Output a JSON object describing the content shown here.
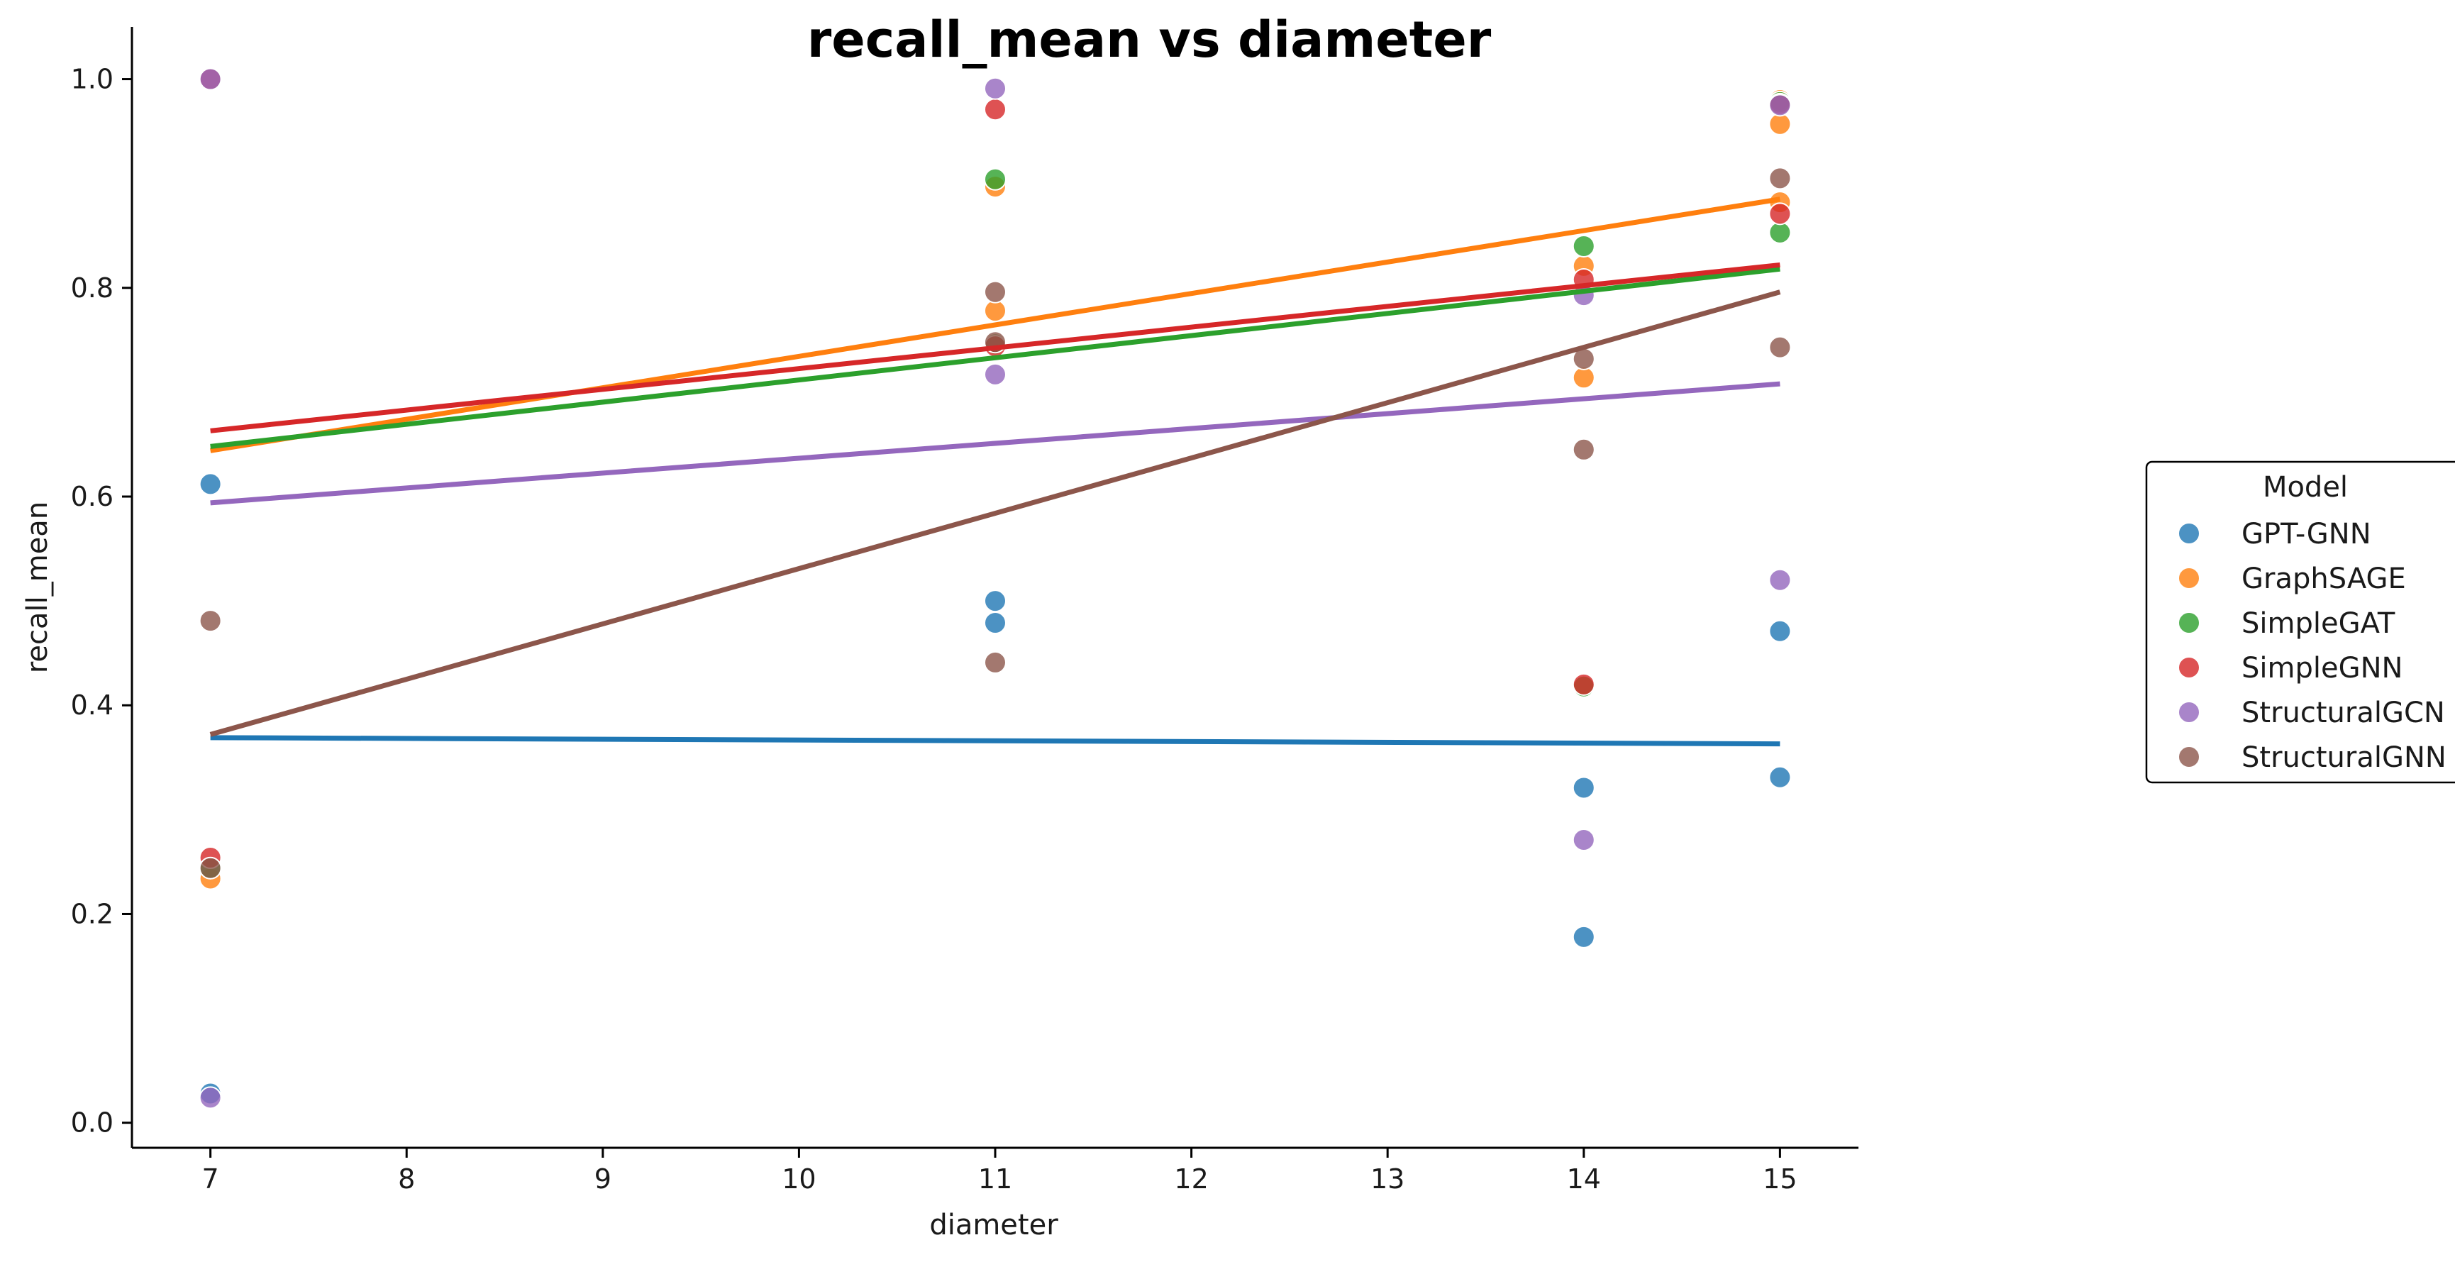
{
  "chart_data": {
    "type": "scatter",
    "title": "recall_mean vs diameter",
    "xlabel": "diameter",
    "ylabel": "recall_mean",
    "xlim": [
      6.6,
      15.4
    ],
    "ylim": [
      -0.024,
      1.05
    ],
    "xticks": [
      7,
      8,
      9,
      10,
      11,
      12,
      13,
      14,
      15
    ],
    "yticks": [
      0.0,
      0.2,
      0.4,
      0.6,
      0.8,
      1.0
    ],
    "grid": false,
    "legend": {
      "title": "Model",
      "placement": "right"
    },
    "series": [
      {
        "name": "GPT-GNN",
        "color": "#1f77b4",
        "points": [
          [
            7,
            0.612
          ],
          [
            7,
            0.028
          ],
          [
            11,
            0.5
          ],
          [
            11,
            0.479
          ],
          [
            14,
            0.321
          ],
          [
            14,
            0.178
          ],
          [
            15,
            0.471
          ],
          [
            15,
            0.331
          ]
        ],
        "trend": [
          [
            7,
            0.369
          ],
          [
            15,
            0.363
          ]
        ]
      },
      {
        "name": "GraphSAGE",
        "color": "#ff7f0e",
        "points": [
          [
            7,
            0.234
          ],
          [
            11,
            0.897
          ],
          [
            11,
            0.778
          ],
          [
            14,
            0.821
          ],
          [
            14,
            0.714
          ],
          [
            15,
            0.98
          ],
          [
            15,
            0.957
          ],
          [
            15,
            0.882
          ]
        ],
        "trend": [
          [
            7,
            0.644
          ],
          [
            15,
            0.885
          ]
        ]
      },
      {
        "name": "SimpleGAT",
        "color": "#2ca02c",
        "points": [
          [
            7,
            0.244
          ],
          [
            11,
            0.904
          ],
          [
            11,
            0.746
          ],
          [
            14,
            0.84
          ],
          [
            14,
            0.418
          ],
          [
            15,
            0.853
          ],
          [
            15,
            0.978
          ]
        ],
        "trend": [
          [
            7,
            0.648
          ],
          [
            15,
            0.818
          ]
        ]
      },
      {
        "name": "SimpleGNN",
        "color": "#d62728",
        "points": [
          [
            7,
            1.0
          ],
          [
            7,
            0.254
          ],
          [
            11,
            0.971
          ],
          [
            11,
            0.744
          ],
          [
            14,
            0.808
          ],
          [
            14,
            0.42
          ],
          [
            15,
            0.871
          ],
          [
            15,
            0.976
          ]
        ],
        "trend": [
          [
            7,
            0.663
          ],
          [
            15,
            0.822
          ]
        ]
      },
      {
        "name": "StructuralGCN",
        "color": "#9467bd",
        "points": [
          [
            7,
            1.0
          ],
          [
            7,
            0.024
          ],
          [
            11,
            0.991
          ],
          [
            11,
            0.717
          ],
          [
            14,
            0.793
          ],
          [
            14,
            0.271
          ],
          [
            15,
            0.52
          ],
          [
            15,
            0.975
          ]
        ],
        "trend": [
          [
            7,
            0.594
          ],
          [
            15,
            0.708
          ]
        ]
      },
      {
        "name": "StructuralGNN",
        "color": "#8c564b",
        "points": [
          [
            7,
            0.481
          ],
          [
            7,
            0.244
          ],
          [
            11,
            0.796
          ],
          [
            11,
            0.748
          ],
          [
            11,
            0.441
          ],
          [
            14,
            0.732
          ],
          [
            14,
            0.645
          ],
          [
            15,
            0.905
          ],
          [
            15,
            0.743
          ]
        ],
        "trend": [
          [
            7,
            0.372
          ],
          [
            15,
            0.796
          ]
        ]
      }
    ]
  }
}
